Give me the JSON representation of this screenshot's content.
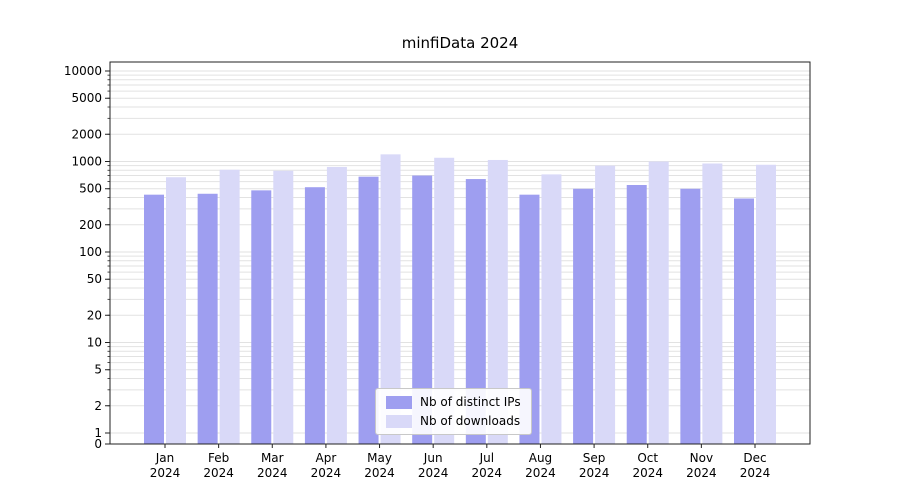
{
  "chart_data": {
    "type": "bar",
    "title": "minfiData 2024",
    "year_label": "2024",
    "categories": [
      "Jan",
      "Feb",
      "Mar",
      "Apr",
      "May",
      "Jun",
      "Jul",
      "Aug",
      "Sep",
      "Oct",
      "Nov",
      "Dec"
    ],
    "series": [
      {
        "name": "Nb of distinct IPs",
        "color": "#9e9ef0",
        "values": [
          430,
          440,
          480,
          520,
          680,
          700,
          640,
          430,
          500,
          550,
          500,
          390
        ]
      },
      {
        "name": "Nb of downloads",
        "color": "#d9d9f8",
        "values": [
          670,
          810,
          790,
          870,
          1200,
          1100,
          1040,
          720,
          900,
          1000,
          950,
          920
        ]
      }
    ],
    "yscale": "symlog",
    "yticks": [
      0,
      1,
      2,
      5,
      10,
      20,
      50,
      100,
      200,
      500,
      1000,
      2000,
      5000,
      10000
    ],
    "ylim": [
      0,
      12500
    ],
    "grid": true,
    "grid_color": "#e2e2e2",
    "axis_color": "#222222",
    "legend_position": "lower center"
  }
}
